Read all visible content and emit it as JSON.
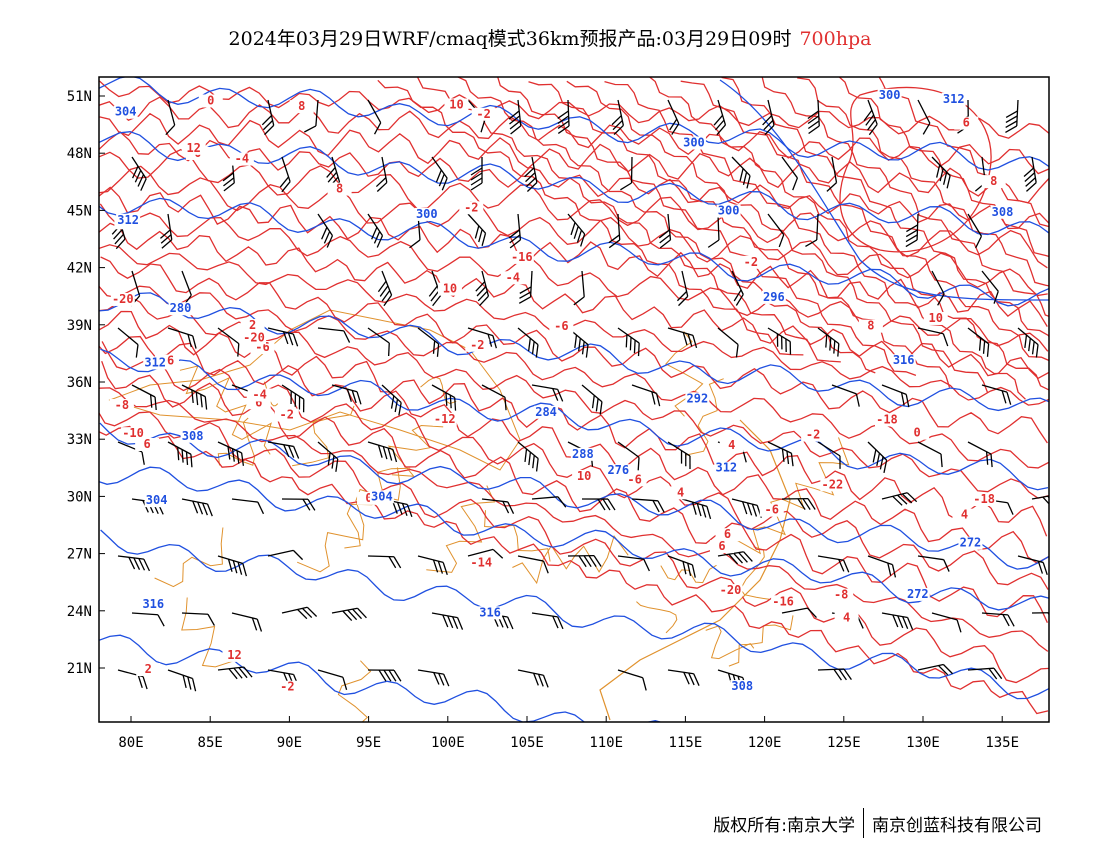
{
  "title": {
    "main": "2024年03月29日WRF/cmaq模式36km预报产品:03月29日09时",
    "level": "700hpa"
  },
  "colors": {
    "temperature": "#e03030",
    "height": "#2050e0",
    "boundary": "#e0922e",
    "barb": "#000000"
  },
  "map": {
    "lon_range": [
      78,
      138
    ],
    "lat_range": [
      18,
      52
    ],
    "lon_ticks": [
      "80E",
      "85E",
      "90E",
      "95E",
      "100E",
      "105E",
      "110E",
      "115E",
      "120E",
      "125E",
      "130E",
      "135E"
    ],
    "lat_ticks": [
      "51N",
      "48N",
      "45N",
      "42N",
      "39N",
      "36N",
      "33N",
      "30N",
      "27N",
      "24N",
      "21N"
    ]
  },
  "temperature_labels": [
    "-2",
    "-8",
    "-6",
    "-6",
    "-4",
    "-2",
    "0",
    "-2",
    "0",
    "-6",
    "-2",
    "-4",
    "-2",
    "0",
    "4",
    "2",
    "0",
    "-6",
    "4",
    "6",
    "8",
    "10",
    "8",
    "6",
    "8",
    "10",
    "12",
    "6",
    "4",
    "2",
    "-16",
    "-20",
    "-22",
    "-20",
    "-18",
    "-20",
    "-18",
    "-16",
    "-14",
    "-12",
    "-10",
    "-8",
    "-6",
    "-4",
    "-2",
    "0",
    "-2",
    "4",
    "6",
    "8",
    "10",
    "10",
    "12",
    "6"
  ],
  "height_labels": [
    "300",
    "304",
    "308",
    "272",
    "272",
    "276",
    "280",
    "284",
    "288",
    "292",
    "296",
    "300",
    "304",
    "308",
    "312",
    "312",
    "312",
    "316",
    "316",
    "316",
    "300",
    "300",
    "304",
    "308",
    "312"
  ],
  "footer": {
    "left": "版权所有:南京大学",
    "right": "南京创蓝科技有限公司"
  }
}
